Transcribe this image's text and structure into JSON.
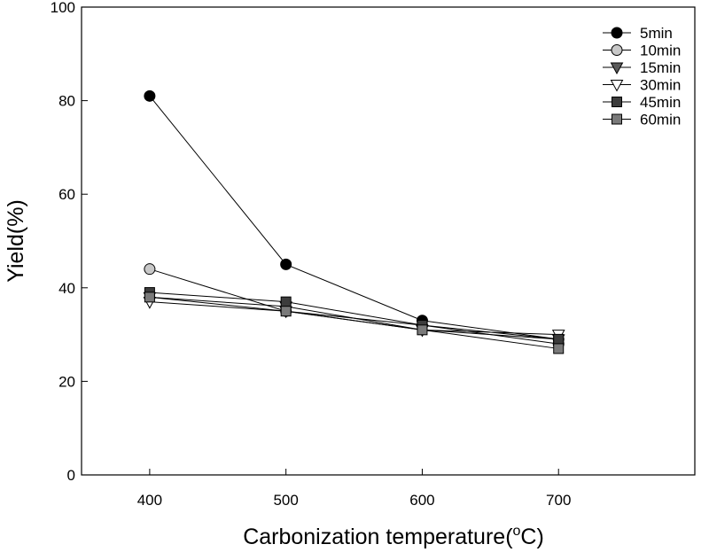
{
  "chart_data": {
    "type": "line",
    "title": "",
    "xlabel": "Carbonization temperature",
    "xlabel_unit_prefix": "(",
    "xlabel_unit_sup": "o",
    "xlabel_unit_suffix": "C)",
    "ylabel": "Yield(%)",
    "x": [
      400,
      500,
      600,
      700
    ],
    "xlim": [
      350,
      800
    ],
    "ylim": [
      0,
      100
    ],
    "xticks": [
      400,
      500,
      600,
      700
    ],
    "yticks": [
      0,
      20,
      40,
      60,
      80,
      100
    ],
    "grid": false,
    "legend_position": "top-right",
    "series": [
      {
        "name": "5min",
        "values": [
          81,
          45,
          33,
          29
        ],
        "marker": "circle",
        "fill": "#000000"
      },
      {
        "name": "10min",
        "values": [
          44,
          35,
          32,
          28
        ],
        "marker": "circle",
        "fill": "#c8c8c8"
      },
      {
        "name": "15min",
        "values": [
          38,
          36,
          31,
          29
        ],
        "marker": "triangle-down",
        "fill": "#5a5a5a"
      },
      {
        "name": "30min",
        "values": [
          37,
          35,
          31,
          30
        ],
        "marker": "triangle-down",
        "fill": "#ffffff"
      },
      {
        "name": "45min",
        "values": [
          39,
          37,
          32,
          29
        ],
        "marker": "square",
        "fill": "#3c3c3c"
      },
      {
        "name": "60min",
        "values": [
          38,
          35,
          31,
          27
        ],
        "marker": "square",
        "fill": "#7a7a7a"
      }
    ]
  }
}
